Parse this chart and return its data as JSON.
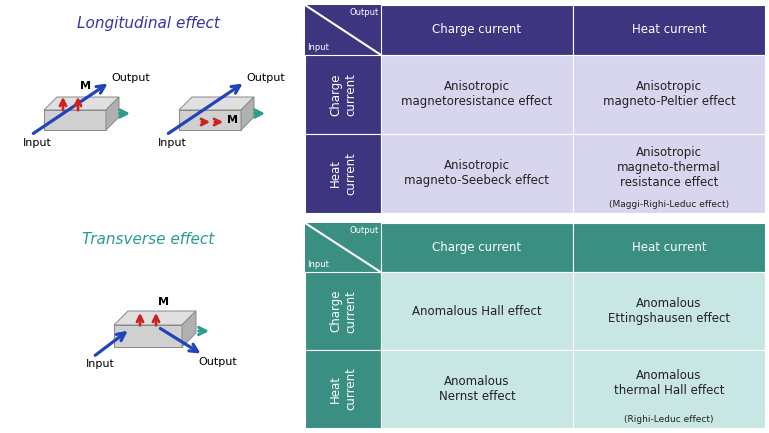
{
  "longitudinal_title": "Longitudinal effect",
  "transverse_title": "Transverse effect",
  "longitudinal_color": "#3333aa",
  "transverse_color": "#2a9d8f",
  "table1": {
    "header_bg": "#3d3580",
    "header_text": "#ffffff",
    "row_header_bg": "#3d3580",
    "row_header_text": "#ffffff",
    "cell_bg": "#d8d5ee",
    "cell_text": "#222222",
    "corner_bg": "#3d3580",
    "col_headers": [
      "Charge current",
      "Heat current"
    ],
    "row_headers": [
      "Charge\ncurrent",
      "Heat\ncurrent"
    ],
    "cells": [
      [
        "Anisotropic\nmagnetoresistance effect",
        "Anisotropic\nmagneto-Peltier effect"
      ],
      [
        "Anisotropic\nmagneto-Seebeck effect",
        "Anisotropic\nmagneto-thermal\nresistance effect\n(Maggi-Righi-Leduc effect)"
      ]
    ]
  },
  "table2": {
    "header_bg": "#3a8f82",
    "header_text": "#ffffff",
    "row_header_bg": "#3a8f82",
    "row_header_text": "#ffffff",
    "cell_bg": "#c8e6e3",
    "cell_text": "#222222",
    "corner_bg": "#3a8f82",
    "col_headers": [
      "Charge current",
      "Heat current"
    ],
    "row_headers": [
      "Charge\ncurrent",
      "Heat\ncurrent"
    ],
    "cells": [
      [
        "Anomalous Hall effect",
        "Anomalous\nEttingshausen effect"
      ],
      [
        "Anomalous\nNernst effect",
        "Anomalous\nthermal Hall effect\n(Righi-Leduc effect)"
      ]
    ]
  },
  "bg_color": "#ffffff"
}
